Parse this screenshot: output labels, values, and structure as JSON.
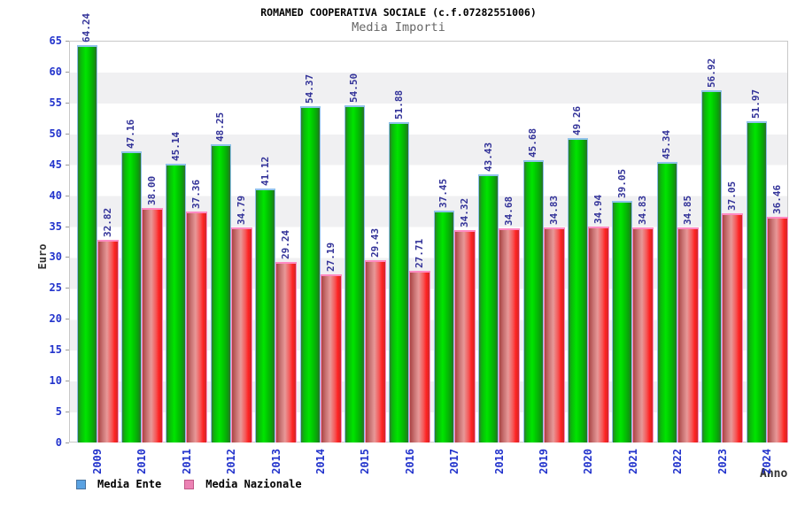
{
  "header": {
    "title": "ROMAMED COOPERATIVA SOCIALE (c.f.07282551006)",
    "subtitle": "Media Importi"
  },
  "axes": {
    "y_label": "Euro",
    "x_label": "Anno",
    "y_ticks": [
      0,
      5,
      10,
      15,
      20,
      25,
      30,
      35,
      40,
      45,
      50,
      55,
      60,
      65
    ]
  },
  "legend": [
    {
      "label": "Media Ente",
      "swatch_fill": "#5aa2e2",
      "swatch_border": "#48729e"
    },
    {
      "label": "Media Nazionale",
      "swatch_fill": "#ec82b4",
      "swatch_border": "#c05a88"
    }
  ],
  "colors": {
    "bar_green_main": "#00e400",
    "bar_green_cap": "#8fc2ea",
    "bar_red_main": "#ff2222",
    "bar_red_cap": "#ff8ac2",
    "value_label": "#333399",
    "axis_tick_label": "#2233cc",
    "band_gray": "#f0f0f2"
  },
  "chart_data": {
    "type": "bar",
    "title": "ROMAMED COOPERATIVA SOCIALE (c.f.07282551006)",
    "subtitle": "Media Importi",
    "xlabel": "Anno",
    "ylabel": "Euro",
    "ylim": [
      0,
      65
    ],
    "ytick_step": 5,
    "grid": "alternating-bands",
    "legend_position": "bottom",
    "value_labels_rotated": true,
    "categories": [
      "2009",
      "2010",
      "2011",
      "2012",
      "2013",
      "2014",
      "2015",
      "2016",
      "2017",
      "2018",
      "2019",
      "2020",
      "2021",
      "2022",
      "2023",
      "2024"
    ],
    "series": [
      {
        "name": "Media Ente",
        "values": [
          64.24,
          47.16,
          45.14,
          48.25,
          41.12,
          54.37,
          54.5,
          51.88,
          37.45,
          43.43,
          45.68,
          49.26,
          39.05,
          45.34,
          56.92,
          51.97
        ]
      },
      {
        "name": "Media Nazionale",
        "values": [
          32.82,
          38.0,
          37.36,
          34.79,
          29.24,
          27.19,
          29.43,
          27.71,
          34.32,
          34.68,
          34.83,
          34.94,
          34.83,
          34.85,
          37.05,
          36.46
        ]
      }
    ]
  }
}
